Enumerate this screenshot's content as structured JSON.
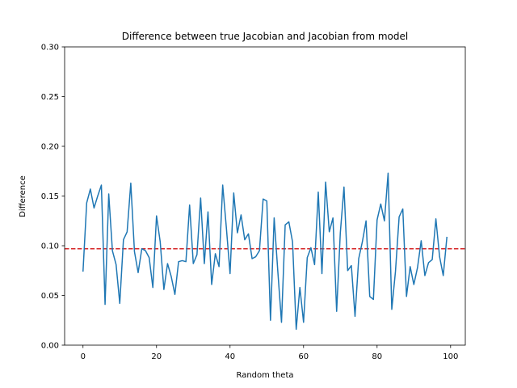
{
  "chart_data": {
    "type": "line",
    "title": "Difference between true Jacobian and Jacobian from model",
    "xlabel": "Random theta",
    "ylabel": "Difference",
    "xlim": [
      -5,
      104
    ],
    "ylim": [
      0,
      0.3
    ],
    "xticks": [
      0,
      20,
      40,
      60,
      80,
      100
    ],
    "yticks": [
      0.0,
      0.05,
      0.1,
      0.15,
      0.2,
      0.25,
      0.3
    ],
    "xtick_labels": [
      "0",
      "20",
      "40",
      "60",
      "80",
      "100"
    ],
    "ytick_labels": [
      "0.00",
      "0.05",
      "0.10",
      "0.15",
      "0.20",
      "0.25",
      "0.30"
    ],
    "grid": false,
    "series": [
      {
        "color": "#1f77b4",
        "x": [
          0,
          1,
          2,
          3,
          4,
          5,
          6,
          7,
          8,
          9,
          10,
          11,
          12,
          13,
          14,
          15,
          16,
          17,
          18,
          19,
          20,
          21,
          22,
          23,
          24,
          25,
          26,
          27,
          28,
          29,
          30,
          31,
          32,
          33,
          34,
          35,
          36,
          37,
          38,
          39,
          40,
          41,
          42,
          43,
          44,
          45,
          46,
          47,
          48,
          49,
          50,
          51,
          52,
          53,
          54,
          55,
          56,
          57,
          58,
          59,
          60,
          61,
          62,
          63,
          64,
          65,
          66,
          67,
          68,
          69,
          70,
          71,
          72,
          73,
          74,
          75,
          76,
          77,
          78,
          79,
          80,
          81,
          82,
          83,
          84,
          85,
          86,
          87,
          88,
          89,
          90,
          91,
          92,
          93,
          94,
          95,
          96,
          97,
          98,
          99
        ],
        "values": [
          0.074,
          0.143,
          0.157,
          0.138,
          0.15,
          0.161,
          0.041,
          0.152,
          0.095,
          0.081,
          0.042,
          0.106,
          0.114,
          0.163,
          0.094,
          0.073,
          0.097,
          0.095,
          0.088,
          0.058,
          0.13,
          0.104,
          0.056,
          0.082,
          0.069,
          0.051,
          0.084,
          0.085,
          0.084,
          0.141,
          0.082,
          0.091,
          0.148,
          0.082,
          0.134,
          0.061,
          0.092,
          0.079,
          0.161,
          0.118,
          0.072,
          0.153,
          0.113,
          0.131,
          0.106,
          0.112,
          0.087,
          0.089,
          0.095,
          0.147,
          0.145,
          0.025,
          0.128,
          0.074,
          0.023,
          0.121,
          0.124,
          0.104,
          0.016,
          0.058,
          0.023,
          0.088,
          0.098,
          0.081,
          0.154,
          0.072,
          0.164,
          0.114,
          0.128,
          0.034,
          0.113,
          0.159,
          0.075,
          0.08,
          0.029,
          0.087,
          0.104,
          0.125,
          0.049,
          0.046,
          0.126,
          0.142,
          0.125,
          0.173,
          0.036,
          0.074,
          0.129,
          0.137,
          0.049,
          0.079,
          0.061,
          0.078,
          0.105,
          0.07,
          0.083,
          0.086,
          0.127,
          0.089,
          0.07,
          0.109
        ]
      }
    ],
    "reference_line": {
      "orientation": "horizontal",
      "y": 0.097,
      "color": "#d62728",
      "style": "dashed"
    }
  }
}
